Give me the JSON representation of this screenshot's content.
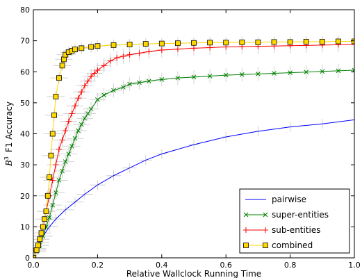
{
  "chart_data": {
    "type": "line",
    "xlabel": "Relative Wallclock Running Time",
    "ylabel_math": "B",
    "ylabel_sup": "3",
    "ylabel_text": "F1 Accuracy",
    "xlim": [
      0,
      1
    ],
    "ylim": [
      0,
      80
    ],
    "x_ticks": [
      0.0,
      0.2,
      0.4,
      0.6,
      0.8,
      1.0
    ],
    "x_tick_labels": [
      "0.0",
      "0.2",
      "0.4",
      "0.6",
      "0.8",
      "1.0"
    ],
    "y_ticks": [
      0,
      10,
      20,
      30,
      40,
      50,
      60,
      70,
      80
    ],
    "y_tick_labels": [
      "0",
      "10",
      "20",
      "30",
      "40",
      "50",
      "60",
      "70",
      "80"
    ],
    "grid": false,
    "legend_position": "bottom-right",
    "series": [
      {
        "name": "pairwise",
        "color": "#0000ff",
        "marker": "none",
        "x": [
          0,
          0.01,
          0.02,
          0.03,
          0.05,
          0.07,
          0.1,
          0.13,
          0.16,
          0.2,
          0.25,
          0.3,
          0.35,
          0.4,
          0.5,
          0.6,
          0.7,
          0.8,
          0.9,
          1.0
        ],
        "y": [
          0,
          2.5,
          5,
          7,
          10,
          12.5,
          15.5,
          18,
          20.5,
          23.5,
          26.5,
          29,
          31.5,
          33.5,
          36.5,
          39,
          40.8,
          42.2,
          43.2,
          44.5
        ]
      },
      {
        "name": "super-entities",
        "color": "#008000",
        "marker": "x",
        "x": [
          0,
          0.01,
          0.02,
          0.03,
          0.04,
          0.05,
          0.06,
          0.07,
          0.08,
          0.09,
          0.1,
          0.11,
          0.12,
          0.13,
          0.14,
          0.15,
          0.16,
          0.17,
          0.18,
          0.2,
          0.22,
          0.25,
          0.28,
          0.3,
          0.33,
          0.36,
          0.4,
          0.45,
          0.5,
          0.55,
          0.6,
          0.65,
          0.7,
          0.75,
          0.8,
          0.85,
          0.9,
          0.95,
          1.0
        ],
        "y": [
          0,
          2,
          4,
          7,
          10,
          13,
          17,
          21,
          25,
          28,
          31,
          33.5,
          36,
          38.5,
          41,
          43,
          45,
          46.5,
          48,
          51,
          52.5,
          54,
          55,
          56,
          56.5,
          57,
          57.5,
          58,
          58.3,
          58.6,
          58.9,
          59.1,
          59.3,
          59.5,
          59.7,
          59.9,
          60.1,
          60.3,
          60.5
        ]
      },
      {
        "name": "sub-entities",
        "color": "#ff0000",
        "marker": "+",
        "x": [
          0,
          0.01,
          0.02,
          0.03,
          0.04,
          0.05,
          0.06,
          0.07,
          0.08,
          0.09,
          0.1,
          0.11,
          0.12,
          0.13,
          0.14,
          0.15,
          0.16,
          0.17,
          0.18,
          0.19,
          0.2,
          0.22,
          0.24,
          0.26,
          0.28,
          0.3,
          0.33,
          0.36,
          0.4,
          0.45,
          0.5,
          0.55,
          0.6,
          0.65,
          0.7,
          0.75,
          0.8,
          0.85,
          0.9,
          0.95,
          1.0
        ],
        "y": [
          0,
          3,
          6,
          10,
          15,
          20,
          25,
          30,
          35,
          38,
          41,
          44,
          46.5,
          49,
          51.5,
          53.5,
          55.5,
          57,
          58.5,
          59.5,
          60.5,
          62,
          63.5,
          64.5,
          65,
          65.5,
          66,
          66.5,
          67,
          67.3,
          67.6,
          67.8,
          68,
          68.1,
          68.2,
          68.3,
          68.4,
          68.5,
          68.6,
          68.7,
          68.8
        ]
      },
      {
        "name": "combined",
        "color": "#ffd700",
        "marker": "square",
        "x": [
          0,
          0.01,
          0.015,
          0.02,
          0.025,
          0.03,
          0.035,
          0.04,
          0.045,
          0.05,
          0.055,
          0.06,
          0.065,
          0.07,
          0.08,
          0.09,
          0.095,
          0.1,
          0.11,
          0.12,
          0.13,
          0.15,
          0.18,
          0.2,
          0.25,
          0.3,
          0.35,
          0.4,
          0.45,
          0.5,
          0.55,
          0.6,
          0.65,
          0.7,
          0.75,
          0.8,
          0.85,
          0.9,
          0.95,
          1.0
        ],
        "y": [
          0,
          2.5,
          4,
          6,
          8,
          10,
          12.5,
          15,
          20,
          26,
          33,
          40,
          46,
          52,
          58,
          62,
          64,
          65.5,
          66.3,
          66.8,
          67.2,
          67.6,
          68,
          68.3,
          68.6,
          68.8,
          69,
          69.1,
          69.2,
          69.3,
          69.4,
          69.4,
          69.5,
          69.5,
          69.6,
          69.6,
          69.7,
          69.7,
          69.8,
          69.8
        ]
      }
    ]
  }
}
